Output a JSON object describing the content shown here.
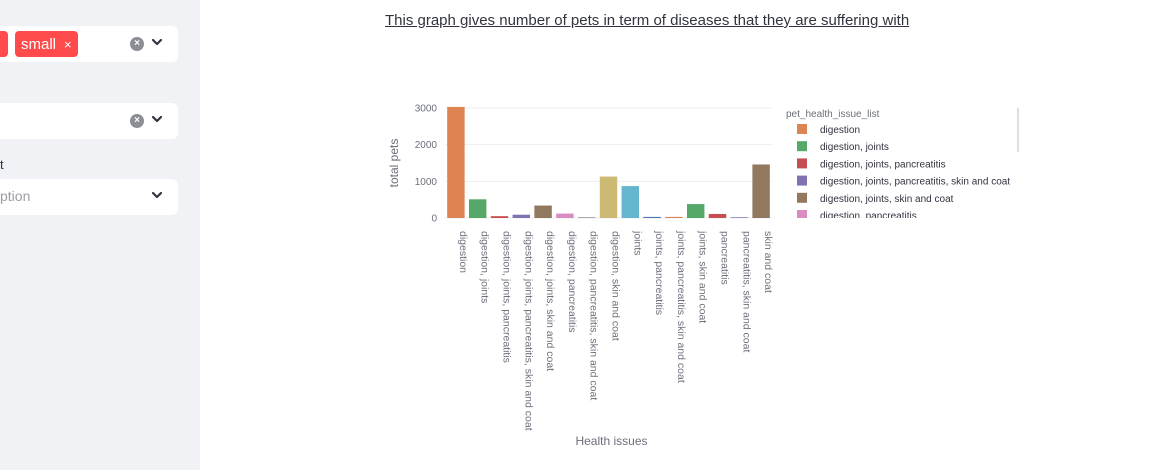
{
  "sidebar": {
    "multiselect1": {
      "tags": [
        "small"
      ],
      "tag_close": "×",
      "clear": "×"
    },
    "select2": {
      "clear": "×"
    },
    "select3": {
      "label": "t",
      "placeholder": "ption"
    }
  },
  "main": {
    "caption": "This graph gives number of pets in term of diseases that they are suffering with"
  },
  "chart_data": {
    "type": "bar",
    "title": "",
    "xlabel": "Health issues",
    "ylabel": "total pets",
    "ylim": [
      0,
      3000
    ],
    "yticks": [
      0,
      1000,
      2000,
      3000
    ],
    "legend_title": "pet_health_issue_list",
    "legend_position": "right",
    "categories": [
      "digestion",
      "digestion, joints",
      "digestion, joints, pancreatitis",
      "digestion, joints, pancreatitis, skin and coat",
      "digestion, joints, skin and coat",
      "digestion, pancreatitis",
      "digestion, pancreatitis, skin and coat",
      "digestion, skin and coat",
      "joints",
      "joints, pancreatitis",
      "joints, pancreatitis, skin and coat",
      "joints, skin and coat",
      "pancreatitis",
      "pancreatitis, skin and coat",
      "skin and coat"
    ],
    "values": [
      3030,
      510,
      50,
      90,
      340,
      120,
      20,
      1130,
      870,
      30,
      30,
      380,
      110,
      20,
      1460
    ],
    "colors": [
      "#dd8452",
      "#55a868",
      "#c44e52",
      "#8172b3",
      "#937860",
      "#da8bc3",
      "#8c8c8c",
      "#ccb974",
      "#64b5cd",
      "#4c72b0",
      "#dd8452",
      "#55a868",
      "#c44e52",
      "#8172b3",
      "#937860"
    ],
    "legend_visible": [
      "digestion",
      "digestion, joints",
      "digestion, joints, pancreatitis",
      "digestion, joints, pancreatitis, skin and coat",
      "digestion, joints, skin and coat",
      "digestion, pancreatitis"
    ]
  }
}
